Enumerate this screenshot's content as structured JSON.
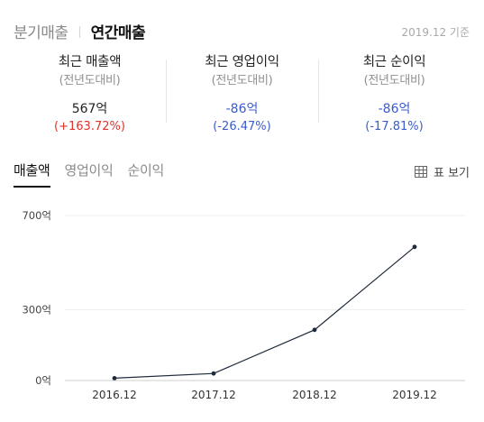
{
  "period_tabs": [
    {
      "label": "분기매출",
      "active": false
    },
    {
      "label": "연간매출",
      "active": true
    }
  ],
  "basis_date": "2019.12 기준",
  "summary": [
    {
      "title": "최근 매출액",
      "subtitle": "(전년도대비)",
      "value": "567억",
      "change": "(+163.72%)",
      "direction": "up"
    },
    {
      "title": "최근 영업이익",
      "subtitle": "(전년도대비)",
      "value": "-86억",
      "change": "(-26.47%)",
      "direction": "down"
    },
    {
      "title": "최근 순이익",
      "subtitle": "(전년도대비)",
      "value": "-86억",
      "change": "(-17.81%)",
      "direction": "down"
    }
  ],
  "metric_tabs": [
    {
      "label": "매출액",
      "active": true
    },
    {
      "label": "영업이익",
      "active": false
    },
    {
      "label": "순이익",
      "active": false
    }
  ],
  "table_view": {
    "label": "표 보기",
    "icon": "table-icon"
  },
  "colors": {
    "up": "#e0332d",
    "down": "#3b5bcc",
    "line": "#1e2a3a"
  },
  "chart_data": {
    "type": "line",
    "categories": [
      "2016.12",
      "2017.12",
      "2018.12",
      "2019.12"
    ],
    "series": [
      {
        "values": [
          10,
          30,
          215,
          567
        ]
      }
    ],
    "y_ticks": [
      {
        "value": 0,
        "label": "0억"
      },
      {
        "value": 300,
        "label": "300억"
      },
      {
        "value": 700,
        "label": "700억"
      }
    ],
    "ylim": [
      0,
      700
    ],
    "grid": true
  }
}
